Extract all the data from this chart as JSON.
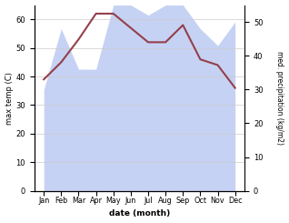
{
  "months": [
    "Jan",
    "Feb",
    "Mar",
    "Apr",
    "May",
    "Jun",
    "Jul",
    "Aug",
    "Sep",
    "Oct",
    "Nov",
    "Dec"
  ],
  "max_temp": [
    39,
    45,
    53,
    62,
    62,
    57,
    52,
    52,
    58,
    46,
    44,
    36
  ],
  "precipitation": [
    30,
    48,
    36,
    36,
    55,
    55,
    52,
    55,
    55,
    48,
    43,
    50
  ],
  "temp_color": "#943f4b",
  "precip_fill_color": "#b3c4f0",
  "precip_fill_alpha": 0.75,
  "xlabel": "date (month)",
  "ylabel_left": "max temp (C)",
  "ylabel_right": "med. precipitation (kg/m2)",
  "ylim_left": [
    0,
    65
  ],
  "ylim_right": [
    0,
    55
  ],
  "yticks_left": [
    0,
    10,
    20,
    30,
    40,
    50,
    60
  ],
  "yticks_right": [
    0,
    10,
    20,
    30,
    40,
    50
  ],
  "background_color": "#ffffff"
}
